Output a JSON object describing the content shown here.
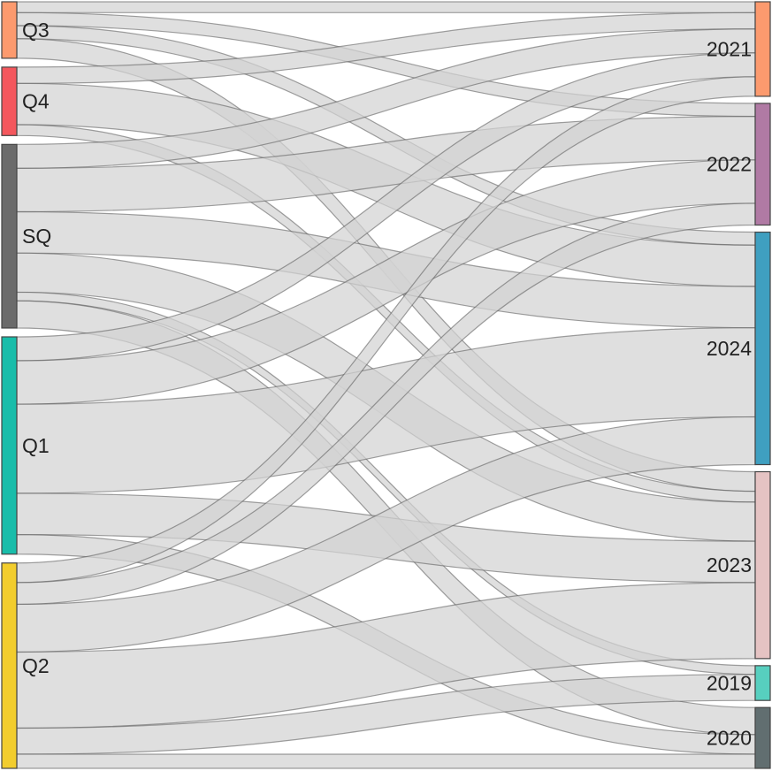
{
  "chart_data": {
    "type": "sankey",
    "source_nodes": [
      {
        "label": "Q3",
        "color": "#fc9a6e"
      },
      {
        "label": "Q4",
        "color": "#f4575d"
      },
      {
        "label": "SQ",
        "color": "#6b6b6b"
      },
      {
        "label": "Q1",
        "color": "#19bdaa"
      },
      {
        "label": "Q2",
        "color": "#f2cd2e"
      }
    ],
    "target_nodes": [
      {
        "label": "2021",
        "color": "#fc9a6e"
      },
      {
        "label": "2022",
        "color": "#b07aa4"
      },
      {
        "label": "2024",
        "color": "#3f9fc0"
      },
      {
        "label": "2023",
        "color": "#e5c3c3"
      },
      {
        "label": "2019",
        "color": "#57cfbf"
      },
      {
        "label": "2020",
        "color": "#616e70"
      }
    ],
    "links": [
      {
        "source": "Q3",
        "target": "2021",
        "value": 10
      },
      {
        "source": "Q3",
        "target": "2022",
        "value": 12
      },
      {
        "source": "Q3",
        "target": "2024",
        "value": 12
      },
      {
        "source": "Q3",
        "target": "2023",
        "value": 18
      },
      {
        "source": "Q4",
        "target": "2021",
        "value": 15
      },
      {
        "source": "Q4",
        "target": "2024",
        "value": 38
      },
      {
        "source": "Q4",
        "target": "2023",
        "value": 10
      },
      {
        "source": "SQ",
        "target": "2021",
        "value": 22
      },
      {
        "source": "SQ",
        "target": "2022",
        "value": 40
      },
      {
        "source": "SQ",
        "target": "2024",
        "value": 38
      },
      {
        "source": "SQ",
        "target": "2023",
        "value": 36
      },
      {
        "source": "SQ",
        "target": "2019",
        "value": 8
      },
      {
        "source": "SQ",
        "target": "2020",
        "value": 25
      },
      {
        "source": "Q1",
        "target": "2021",
        "value": 22
      },
      {
        "source": "Q1",
        "target": "2022",
        "value": 40
      },
      {
        "source": "Q1",
        "target": "2024",
        "value": 82
      },
      {
        "source": "Q1",
        "target": "2023",
        "value": 38
      },
      {
        "source": "Q1",
        "target": "2020",
        "value": 18
      },
      {
        "source": "Q2",
        "target": "2021",
        "value": 18
      },
      {
        "source": "Q2",
        "target": "2022",
        "value": 20
      },
      {
        "source": "Q2",
        "target": "2024",
        "value": 44
      },
      {
        "source": "Q2",
        "target": "2023",
        "value": 70
      },
      {
        "source": "Q2",
        "target": "2019",
        "value": 24
      },
      {
        "source": "Q2",
        "target": "2020",
        "value": 13
      }
    ]
  }
}
